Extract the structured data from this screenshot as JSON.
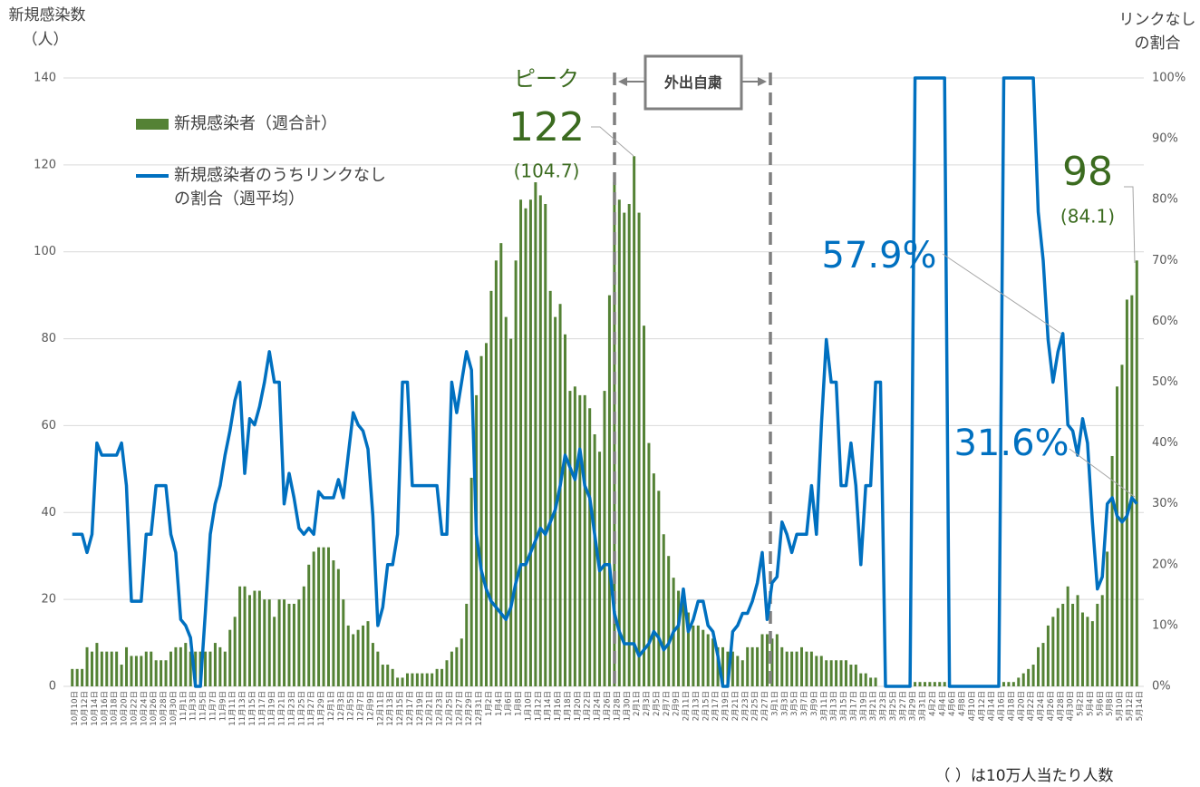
{
  "chart_data": {
    "type": "bar_line",
    "y_label": [
      "新規感染数",
      "（人）"
    ],
    "y2_label": [
      "リンクなし",
      "の割合"
    ],
    "footnote": "（ ）は10万人当たり人数",
    "box_label": "外出自粛",
    "annotations": [
      "ピーク",
      "122",
      "(104.7)",
      "98",
      "(84.1)",
      "57.9%",
      "31.6%"
    ],
    "ylim": [
      0,
      140
    ],
    "yticks": [
      0,
      20,
      40,
      60,
      80,
      100,
      120,
      140
    ],
    "y2lim": [
      0,
      100
    ],
    "y2ticks": [
      {
        "value": 0,
        "label": "0%"
      },
      {
        "value": 10,
        "label": "10%"
      },
      {
        "value": 20,
        "label": "20%"
      },
      {
        "value": 30,
        "label": "30%"
      },
      {
        "value": 40,
        "label": "40%"
      },
      {
        "value": 50,
        "label": "50%"
      },
      {
        "value": 60,
        "label": "60%"
      },
      {
        "value": 70,
        "label": "70%"
      },
      {
        "value": 80,
        "label": "80%"
      },
      {
        "value": 90,
        "label": "90%"
      },
      {
        "value": 100,
        "label": "100%"
      }
    ],
    "grid": true,
    "categories": [
      "10月10日",
      null,
      "10月12日",
      null,
      "10月14日",
      null,
      "10月16日",
      null,
      "10月18日",
      null,
      "10月20日",
      null,
      "10月22日",
      null,
      "10月24日",
      null,
      "10月26日",
      null,
      "10月28日",
      null,
      "10月30日",
      null,
      "11月1日",
      null,
      "11月3日",
      null,
      "11月5日",
      null,
      "11月7日",
      null,
      "11月9日",
      null,
      "11月11日",
      null,
      "11月13日",
      null,
      "11月15日",
      null,
      "11月17日",
      null,
      "11月19日",
      null,
      "11月21日",
      null,
      "11月23日",
      null,
      "11月25日",
      null,
      "11月27日",
      null,
      "11月29日",
      null,
      "12月1日",
      null,
      "12月3日",
      null,
      "12月5日",
      null,
      "12月7日",
      null,
      "12月9日",
      null,
      "12月11日",
      null,
      "12月13日",
      null,
      "12月15日",
      null,
      "12月17日",
      null,
      "12月19日",
      null,
      "12月21日",
      null,
      "12月23日",
      null,
      "12月25日",
      null,
      "12月27日",
      null,
      "12月29日",
      null,
      "12月31日",
      null,
      "1月2日",
      null,
      "1月4日",
      null,
      "1月6日",
      null,
      "1月8日",
      null,
      "1月10日",
      null,
      "1月12日",
      null,
      "1月14日",
      null,
      "1月16日",
      null,
      "1月18日",
      null,
      "1月20日",
      null,
      "1月22日",
      null,
      "1月24日",
      null,
      "1月26日",
      null,
      "1月28日",
      null,
      "1月30日",
      null,
      "2月1日",
      null,
      "2月3日",
      null,
      "2月5日",
      null,
      "2月7日",
      null,
      "2月9日",
      null,
      "2月11日",
      null,
      "2月13日",
      null,
      "2月15日",
      null,
      "2月17日",
      null,
      "2月19日",
      null,
      "2月21日",
      null,
      "2月23日",
      null,
      "2月25日",
      null,
      "2月27日",
      null,
      "3月1日",
      null,
      "3月3日",
      null,
      "3月5日",
      null,
      "3月7日",
      null,
      "3月9日",
      null,
      "3月11日",
      null,
      "3月13日",
      null,
      "3月15日",
      null,
      "3月17日",
      null,
      "3月19日",
      null,
      "3月21日",
      null,
      "3月23日",
      null,
      "3月25日",
      null,
      "3月27日",
      null,
      "3月29日",
      null,
      "3月31日",
      null,
      "4月2日",
      null,
      "4月4日",
      null,
      "4月6日",
      null,
      "4月8日",
      null,
      "4月10日",
      null,
      "4月12日",
      null,
      "4月14日",
      null,
      "4月16日",
      null,
      "4月18日",
      null,
      "4月20日",
      null,
      "4月22日",
      null,
      "4月24日",
      null,
      "4月26日",
      null,
      "4月28日",
      null,
      "4月30日",
      null,
      "5月2日",
      null,
      "5月4日",
      null,
      "5月6日",
      null,
      "5月8日",
      null,
      "5月10日",
      null,
      "5月12日",
      null,
      "5月14日"
    ],
    "series": [
      {
        "name": "新規感染者（週合計）",
        "color": "#548235",
        "values": [
          4,
          4,
          4,
          9,
          8,
          10,
          8,
          8,
          8,
          8,
          5,
          9,
          7,
          7,
          7,
          8,
          8,
          6,
          6,
          6,
          8,
          9,
          9,
          10,
          8,
          8,
          8,
          8,
          8,
          10,
          9,
          8,
          13,
          16,
          23,
          23,
          21,
          22,
          22,
          20,
          20,
          16,
          20,
          20,
          19,
          19,
          20,
          23,
          28,
          31,
          32,
          32,
          32,
          29,
          27,
          20,
          14,
          12,
          13,
          14,
          15,
          10,
          8,
          5,
          5,
          4,
          2,
          2,
          3,
          3,
          3,
          3,
          3,
          3,
          4,
          4,
          6,
          8,
          9,
          11,
          19,
          48,
          67,
          76,
          79,
          91,
          98,
          102,
          85,
          80,
          98,
          112,
          110,
          112,
          116,
          113,
          111,
          91,
          85,
          88,
          81,
          68,
          69,
          67,
          67,
          64,
          58,
          54,
          68,
          90,
          116,
          112,
          109,
          111,
          122,
          109,
          83,
          56,
          49,
          45,
          35,
          30,
          25,
          22,
          20,
          17,
          14,
          14,
          13,
          12,
          11,
          9,
          9,
          8,
          8,
          7,
          6,
          9,
          9,
          9,
          12,
          12,
          11,
          12,
          9,
          8,
          8,
          8,
          9,
          8,
          8,
          7,
          7,
          6,
          6,
          6,
          6,
          6,
          5,
          5,
          3,
          3,
          2,
          2,
          0,
          0,
          0,
          0,
          0,
          0,
          0,
          1,
          1,
          1,
          1,
          1,
          1,
          1,
          0,
          0,
          0,
          0,
          0,
          0,
          0,
          0,
          0,
          0,
          0,
          1,
          1,
          1,
          2,
          3,
          4,
          5,
          9,
          10,
          14,
          16,
          18,
          19,
          23,
          19,
          21,
          17,
          16,
          15,
          19,
          21,
          31,
          53,
          69,
          74,
          89,
          90,
          98
        ]
      },
      {
        "name": "新規感染者のうちリンクなしの割合（週平均）",
        "color": "#0070c0",
        "axis": "y2",
        "values": [
          25,
          25,
          25,
          22,
          25,
          40,
          38,
          38,
          38,
          38,
          40,
          33,
          14,
          14,
          14,
          25,
          25,
          33,
          33,
          33,
          25,
          22,
          11,
          10,
          8,
          0,
          0,
          12,
          25,
          30,
          33,
          38,
          42,
          47,
          50,
          35,
          44,
          43,
          46,
          50,
          55,
          50,
          50,
          30,
          35,
          31,
          26,
          25,
          26,
          25,
          32,
          31,
          31,
          31,
          34,
          31,
          38,
          45,
          43,
          42,
          39,
          28,
          10,
          13,
          20,
          20,
          25,
          50,
          50,
          33,
          33,
          33,
          33,
          33,
          33,
          25,
          25,
          50,
          45,
          50,
          55,
          52,
          25,
          19,
          16,
          14,
          13,
          12,
          11,
          13,
          17,
          20,
          20,
          22,
          24,
          26,
          25,
          27,
          29,
          33,
          38,
          36,
          34,
          39,
          33,
          31,
          25,
          19,
          20,
          20,
          12,
          9,
          7,
          7,
          7,
          5,
          6,
          7,
          9,
          8,
          6,
          7,
          9,
          10,
          16,
          9,
          11,
          14,
          14,
          10,
          9,
          5,
          0,
          0,
          9,
          10,
          12,
          12,
          14,
          17,
          22,
          11,
          17,
          18,
          27,
          25,
          22,
          25,
          25,
          25,
          33,
          25,
          43,
          57,
          50,
          50,
          33,
          33,
          40,
          33,
          20,
          33,
          33,
          50,
          50,
          0,
          0,
          0,
          0,
          0,
          0,
          100,
          100,
          100,
          100,
          100,
          100,
          100,
          0,
          0,
          0,
          0,
          0,
          0,
          0,
          0,
          0,
          0,
          0,
          100,
          100,
          100,
          100,
          100,
          100,
          100,
          78,
          70,
          57,
          50,
          55,
          58,
          43,
          42,
          38,
          44,
          40,
          27,
          16,
          18,
          30,
          31,
          28,
          27,
          28,
          31,
          30
        ]
      }
    ]
  }
}
